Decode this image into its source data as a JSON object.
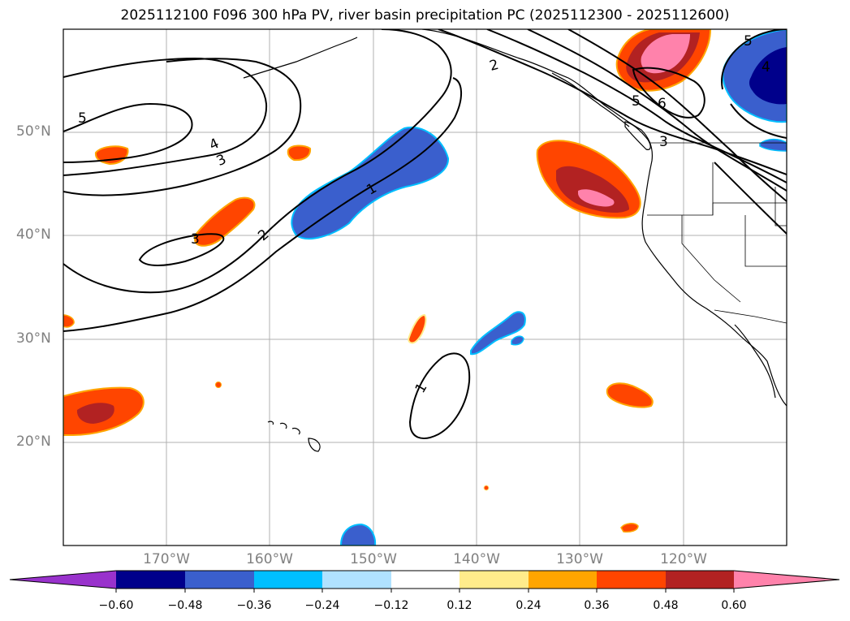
{
  "title": "2025112100 F096 300 hPa PV, river basin precipitation PC (2025112300 - 2025112600)",
  "lat_labels": [
    "50°N",
    "40°N",
    "30°N",
    "20°N"
  ],
  "lon_labels": [
    "170°W",
    "160°W",
    "150°W",
    "140°W",
    "130°W",
    "120°W"
  ],
  "colorbar": {
    "ticks": [
      "−0.60",
      "−0.48",
      "−0.36",
      "−0.24",
      "−0.12",
      "0.12",
      "0.24",
      "0.36",
      "0.48",
      "0.60"
    ],
    "colors": [
      "#9932cc",
      "#00008b",
      "#3a5fcd",
      "#00bfff",
      "#b0e2ff",
      "#ffffff",
      "#ffec8b",
      "#ffa500",
      "#ff4500",
      "#b22222",
      "#ff82ab"
    ]
  },
  "contour_labels": [
    "5",
    "4",
    "3",
    "3",
    "2",
    "1",
    "1",
    "2",
    "3",
    "5",
    "6",
    "5",
    "4"
  ]
}
